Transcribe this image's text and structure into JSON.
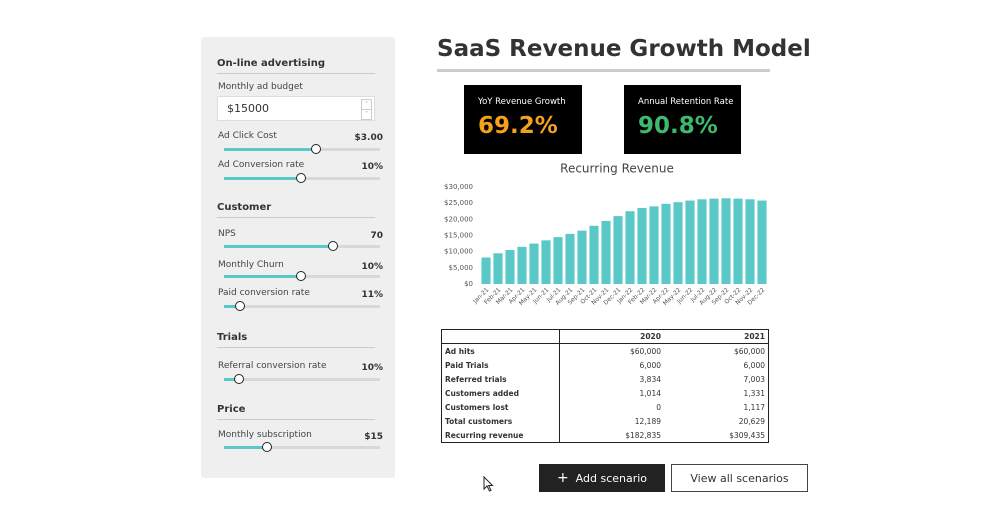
{
  "header": {
    "title": "SaaS Revenue Growth Model"
  },
  "sidebar": {
    "sections": [
      {
        "title": "On-line advertising",
        "fields": [
          {
            "label": "Monthly ad budget",
            "value": "$15000"
          },
          {
            "label": "Ad Click Cost",
            "value": "$3.00"
          },
          {
            "label": "Ad Conversion rate",
            "value": "10%"
          }
        ]
      },
      {
        "title": "Customer",
        "fields": [
          {
            "label": "NPS",
            "value": "70"
          },
          {
            "label": "Monthly Churn",
            "value": "10%"
          },
          {
            "label": "Paid conversion rate",
            "value": "11%"
          }
        ]
      },
      {
        "title": "Trials",
        "fields": [
          {
            "label": "Referral conversion rate",
            "value": "10%"
          }
        ]
      },
      {
        "title": "Price",
        "fields": [
          {
            "label": "Monthly subscription",
            "value": "$15"
          }
        ]
      }
    ]
  },
  "kpis": [
    {
      "label": "YoY Revenue Growth",
      "value": "69.2%"
    },
    {
      "label": "Annual Retention Rate",
      "value": "90.8%"
    }
  ],
  "chart_data": {
    "type": "bar",
    "title": "Recurring Revenue",
    "categories": [
      "Jan-21",
      "Feb-21",
      "Mar-21",
      "Apr-21",
      "May-21",
      "Jun-21",
      "Jul-21",
      "Aug-21",
      "Sep-21",
      "Oct-21",
      "Nov-21",
      "Dec-21",
      "Jan-22",
      "Feb-22",
      "Mar-22",
      "Apr-22",
      "May-22",
      "Jun-22",
      "Jul-22",
      "Aug-22",
      "Sep-22",
      "Oct-22",
      "Nov-22",
      "Dec-22"
    ],
    "values": [
      8200,
      9500,
      10500,
      11500,
      12500,
      13500,
      14500,
      15500,
      16500,
      18000,
      19500,
      21000,
      22500,
      23500,
      24000,
      24800,
      25300,
      25800,
      26200,
      26400,
      26500,
      26400,
      26200,
      25800
    ],
    "color": "#5bc8c8",
    "ylim": [
      0,
      30000
    ],
    "yticks": [
      {
        "value": 0,
        "label": "$0"
      },
      {
        "value": 5000,
        "label": "$5,000"
      },
      {
        "value": 10000,
        "label": "$10,000"
      },
      {
        "value": 15000,
        "label": "$15,000"
      },
      {
        "value": 20000,
        "label": "$20,000"
      },
      {
        "value": 25000,
        "label": "$25,000"
      },
      {
        "value": 30000,
        "label": "$30,000"
      }
    ],
    "grid": false
  },
  "table": {
    "columns": [
      "2020",
      "2021"
    ],
    "rows": [
      [
        "Ad hits",
        "$60,000",
        "$60,000"
      ],
      [
        "Paid Trials",
        "6,000",
        "6,000"
      ],
      [
        "Referred trials",
        "3,834",
        "7,003"
      ],
      [
        "Customers added",
        "1,014",
        "1,331"
      ],
      [
        "Customers lost",
        "0",
        "1,117"
      ],
      [
        "Total customers",
        "12,189",
        "20,629"
      ],
      [
        "Recurring revenue",
        "$182,835",
        "$309,435"
      ]
    ]
  },
  "buttons": [
    "Add scenario",
    "View all scenarios"
  ]
}
